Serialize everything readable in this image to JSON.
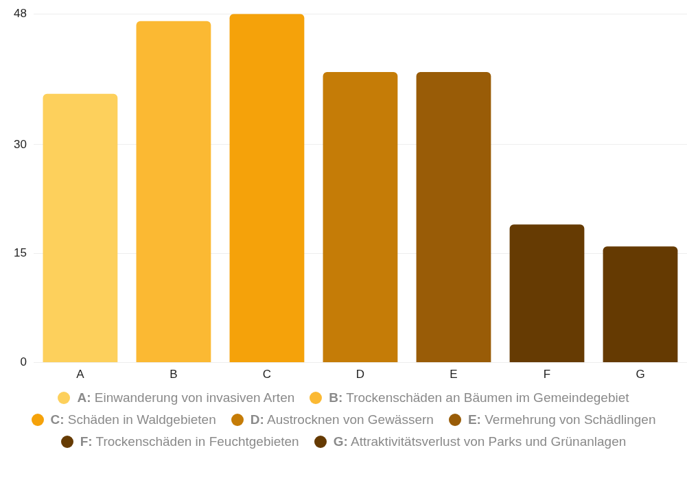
{
  "chart_data": {
    "type": "bar",
    "categories": [
      "A",
      "B",
      "C",
      "D",
      "E",
      "F",
      "G"
    ],
    "stacked": true,
    "ylim": [
      0,
      48
    ],
    "yticks": [
      0,
      15,
      30,
      48
    ],
    "grid": "y",
    "legend": "bottom",
    "series": [
      {
        "name": "A: Einwanderung von invasiven Arten",
        "color": "#fdd05c",
        "values": [
          37,
          null,
          null,
          null,
          null,
          null,
          null
        ]
      },
      {
        "name": "B: Trockenschäden an Bäumen im Gemeindegebiet",
        "color": "#fbb933",
        "values": [
          null,
          47,
          null,
          null,
          null,
          null,
          null
        ]
      },
      {
        "name": "C: Schäden in Waldgebieten",
        "color": "#f5a20a",
        "values": [
          null,
          null,
          48,
          null,
          null,
          null,
          null
        ]
      },
      {
        "name": "D: Austrocknen von Gewässern",
        "color": "#c57c07",
        "values": [
          null,
          null,
          null,
          40,
          null,
          null,
          null
        ]
      },
      {
        "name": "E: Vermehrung von Schädlingen",
        "color": "#995c07",
        "values": [
          null,
          null,
          null,
          null,
          40,
          null,
          null
        ]
      },
      {
        "name": "F: Trockenschäden in Feuchtgebieten",
        "color": "#663b03",
        "values": [
          null,
          null,
          null,
          null,
          null,
          19,
          null
        ]
      },
      {
        "name": "G: Attraktivitätsverlust von Parks und Grünanlagen",
        "color": "#653a02",
        "values": [
          null,
          null,
          null,
          null,
          null,
          null,
          16
        ]
      }
    ]
  }
}
